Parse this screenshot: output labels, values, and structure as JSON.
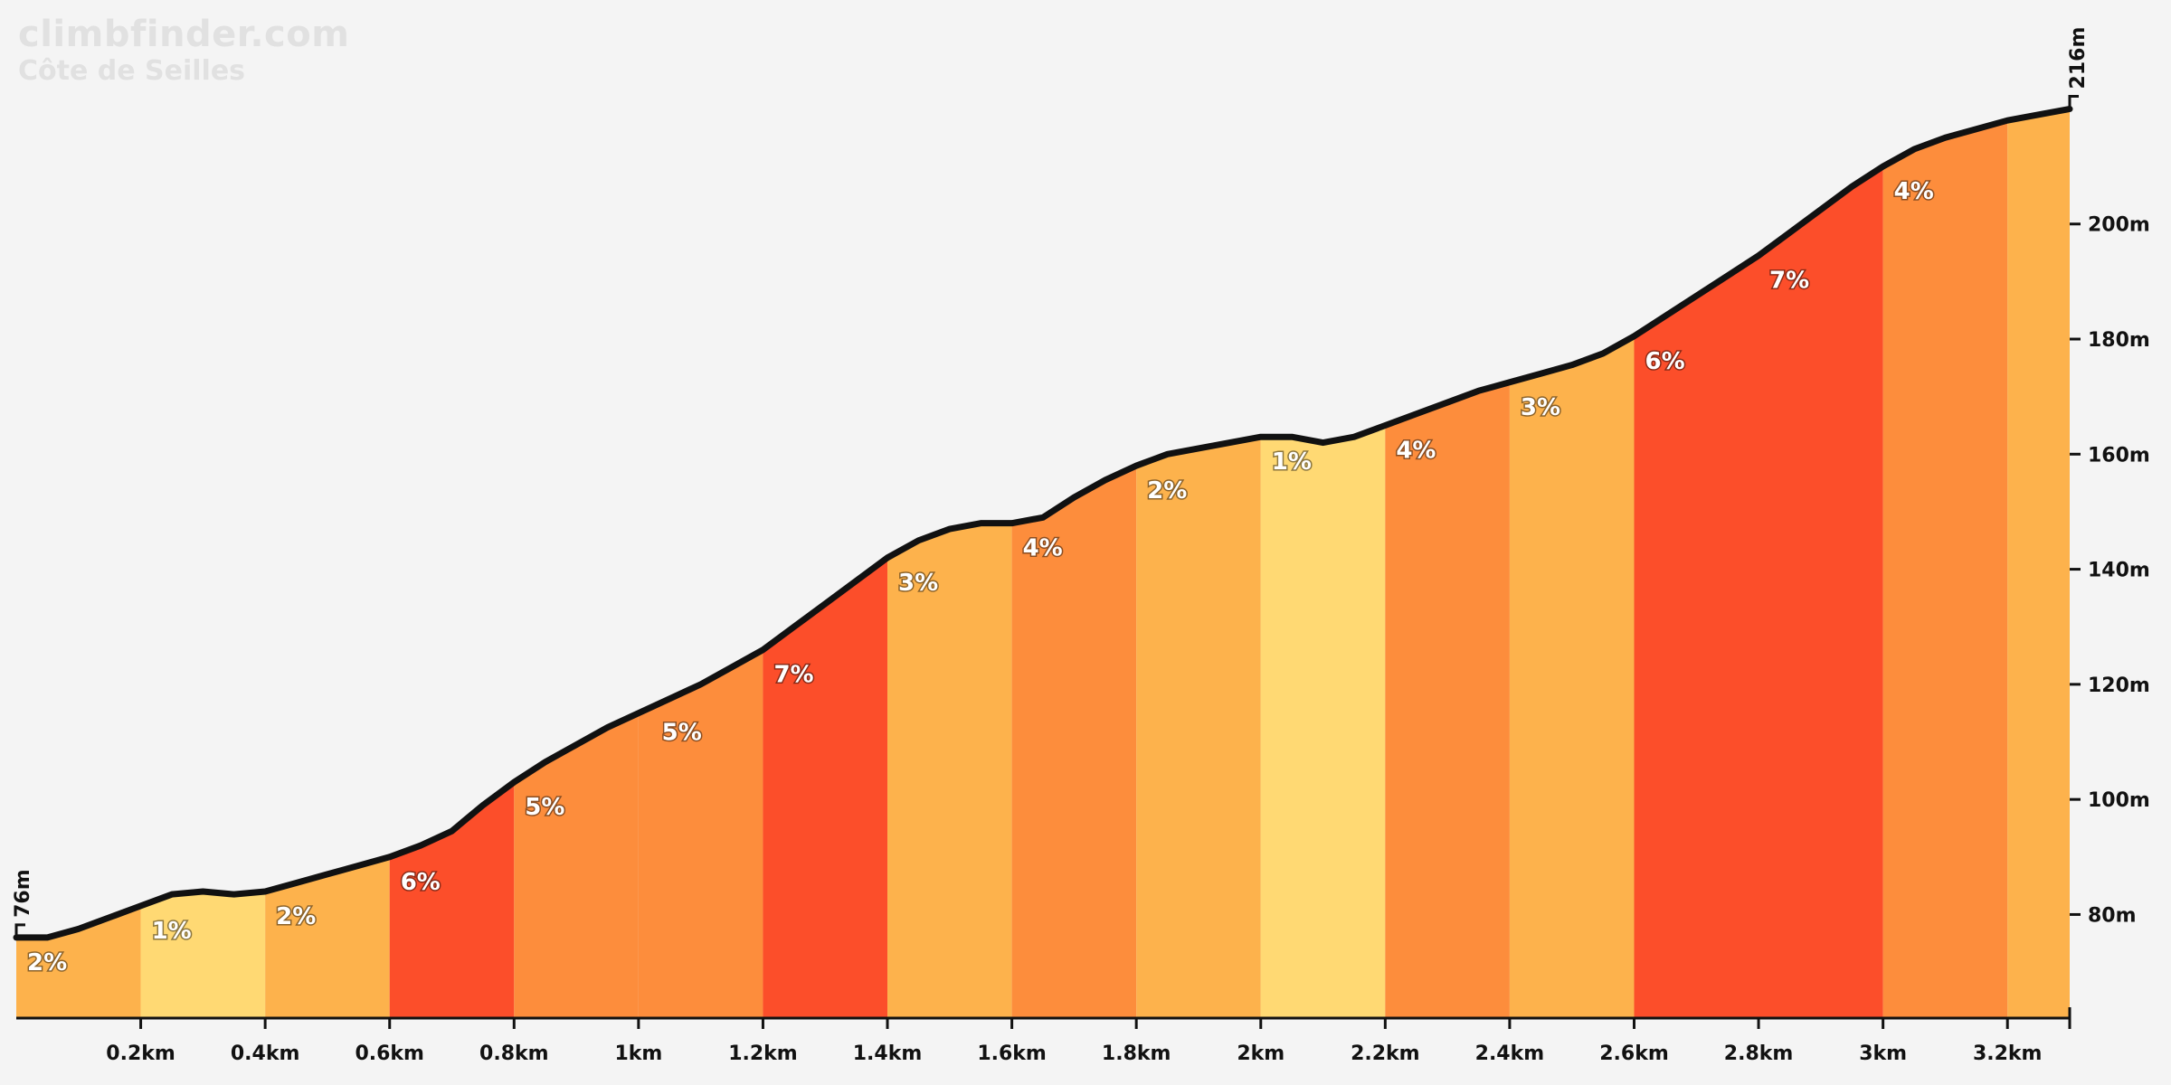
{
  "brand": {
    "site": "climbfinder.com",
    "climb_name": "Côte de Seilles"
  },
  "colors": {
    "background": "#f4f4f4",
    "1%": "#ffd973",
    "2%": "#fdb24c",
    "3%": "#fdb24c",
    "4%": "#fd8d3c",
    "5%": "#fd8d3c",
    "6%": "#fc4e2a",
    "7%": "#fc4e2a",
    "profile_line": "#111111"
  },
  "chart_data": {
    "type": "area",
    "title": "Côte de Seilles",
    "x_unit": "km",
    "y_unit": "m",
    "xlim": [
      0,
      3.3
    ],
    "ylim": [
      62,
      224
    ],
    "x_ticks": [
      {
        "value": 0.2,
        "label": "0.2km"
      },
      {
        "value": 0.4,
        "label": "0.4km"
      },
      {
        "value": 0.6,
        "label": "0.6km"
      },
      {
        "value": 0.8,
        "label": "0.8km"
      },
      {
        "value": 1.0,
        "label": "1km"
      },
      {
        "value": 1.2,
        "label": "1.2km"
      },
      {
        "value": 1.4,
        "label": "1.4km"
      },
      {
        "value": 1.6,
        "label": "1.6km"
      },
      {
        "value": 1.8,
        "label": "1.8km"
      },
      {
        "value": 2.0,
        "label": "2km"
      },
      {
        "value": 2.2,
        "label": "2.2km"
      },
      {
        "value": 2.4,
        "label": "2.4km"
      },
      {
        "value": 2.6,
        "label": "2.6km"
      },
      {
        "value": 2.8,
        "label": "2.8km"
      },
      {
        "value": 3.0,
        "label": "3km"
      },
      {
        "value": 3.2,
        "label": "3.2km"
      }
    ],
    "y_ticks": [
      {
        "value": 80,
        "label": "80m"
      },
      {
        "value": 100,
        "label": "100m"
      },
      {
        "value": 120,
        "label": "120m"
      },
      {
        "value": 140,
        "label": "140m"
      },
      {
        "value": 160,
        "label": "160m"
      },
      {
        "value": 180,
        "label": "180m"
      },
      {
        "value": 200,
        "label": "200m"
      }
    ],
    "start_elevation": {
      "value": 76,
      "label": "76m"
    },
    "end_elevation": {
      "value": 216,
      "label": "216m"
    },
    "segments": [
      {
        "start": 0.0,
        "end": 0.2,
        "grade": "2%"
      },
      {
        "start": 0.2,
        "end": 0.4,
        "grade": "1%"
      },
      {
        "start": 0.4,
        "end": 0.6,
        "grade": "2%"
      },
      {
        "start": 0.6,
        "end": 0.8,
        "grade": "6%"
      },
      {
        "start": 0.8,
        "end": 1.0,
        "grade": "5%"
      },
      {
        "start": 1.0,
        "end": 1.2,
        "grade": "5%"
      },
      {
        "start": 1.2,
        "end": 1.4,
        "grade": "7%"
      },
      {
        "start": 1.4,
        "end": 1.6,
        "grade": "3%"
      },
      {
        "start": 1.6,
        "end": 1.8,
        "grade": "4%"
      },
      {
        "start": 1.8,
        "end": 2.0,
        "grade": "2%"
      },
      {
        "start": 2.0,
        "end": 2.2,
        "grade": "1%"
      },
      {
        "start": 2.2,
        "end": 2.4,
        "grade": "4%"
      },
      {
        "start": 2.4,
        "end": 2.6,
        "grade": "3%"
      },
      {
        "start": 2.6,
        "end": 3.0,
        "grade": "7%"
      },
      {
        "start": 3.0,
        "end": 3.2,
        "grade": "4%"
      },
      {
        "start": 3.2,
        "end": 3.3,
        "grade": ""
      }
    ],
    "extra_labels": [
      {
        "distance": 2.6,
        "grade": "6%"
      }
    ],
    "profile": [
      [
        0.0,
        76
      ],
      [
        0.05,
        76
      ],
      [
        0.1,
        77.5
      ],
      [
        0.15,
        79.5
      ],
      [
        0.2,
        81.5
      ],
      [
        0.25,
        83.5
      ],
      [
        0.3,
        84
      ],
      [
        0.35,
        83.5
      ],
      [
        0.4,
        84
      ],
      [
        0.45,
        85.5
      ],
      [
        0.5,
        87
      ],
      [
        0.55,
        88.5
      ],
      [
        0.6,
        90
      ],
      [
        0.65,
        92
      ],
      [
        0.7,
        94.5
      ],
      [
        0.75,
        99
      ],
      [
        0.8,
        103
      ],
      [
        0.85,
        106.5
      ],
      [
        0.9,
        109.5
      ],
      [
        0.95,
        112.5
      ],
      [
        1.0,
        115
      ],
      [
        1.05,
        117.5
      ],
      [
        1.1,
        120
      ],
      [
        1.15,
        123
      ],
      [
        1.2,
        126
      ],
      [
        1.25,
        130
      ],
      [
        1.3,
        134
      ],
      [
        1.35,
        138
      ],
      [
        1.4,
        142
      ],
      [
        1.45,
        145
      ],
      [
        1.5,
        147
      ],
      [
        1.55,
        148
      ],
      [
        1.6,
        148
      ],
      [
        1.65,
        149
      ],
      [
        1.7,
        152.5
      ],
      [
        1.75,
        155.5
      ],
      [
        1.8,
        158
      ],
      [
        1.85,
        160
      ],
      [
        1.9,
        161
      ],
      [
        1.95,
        162
      ],
      [
        2.0,
        163
      ],
      [
        2.05,
        163
      ],
      [
        2.1,
        162
      ],
      [
        2.15,
        163
      ],
      [
        2.2,
        165
      ],
      [
        2.25,
        167
      ],
      [
        2.3,
        169
      ],
      [
        2.35,
        171
      ],
      [
        2.4,
        172.5
      ],
      [
        2.45,
        174
      ],
      [
        2.5,
        175.5
      ],
      [
        2.55,
        177.5
      ],
      [
        2.6,
        180.5
      ],
      [
        2.65,
        184
      ],
      [
        2.7,
        187.5
      ],
      [
        2.75,
        191
      ],
      [
        2.8,
        194.5
      ],
      [
        2.85,
        198.5
      ],
      [
        2.9,
        202.5
      ],
      [
        2.95,
        206.5
      ],
      [
        3.0,
        210
      ],
      [
        3.05,
        213
      ],
      [
        3.1,
        215
      ],
      [
        3.15,
        216.5
      ],
      [
        3.2,
        218
      ],
      [
        3.25,
        219
      ],
      [
        3.3,
        220
      ]
    ]
  }
}
